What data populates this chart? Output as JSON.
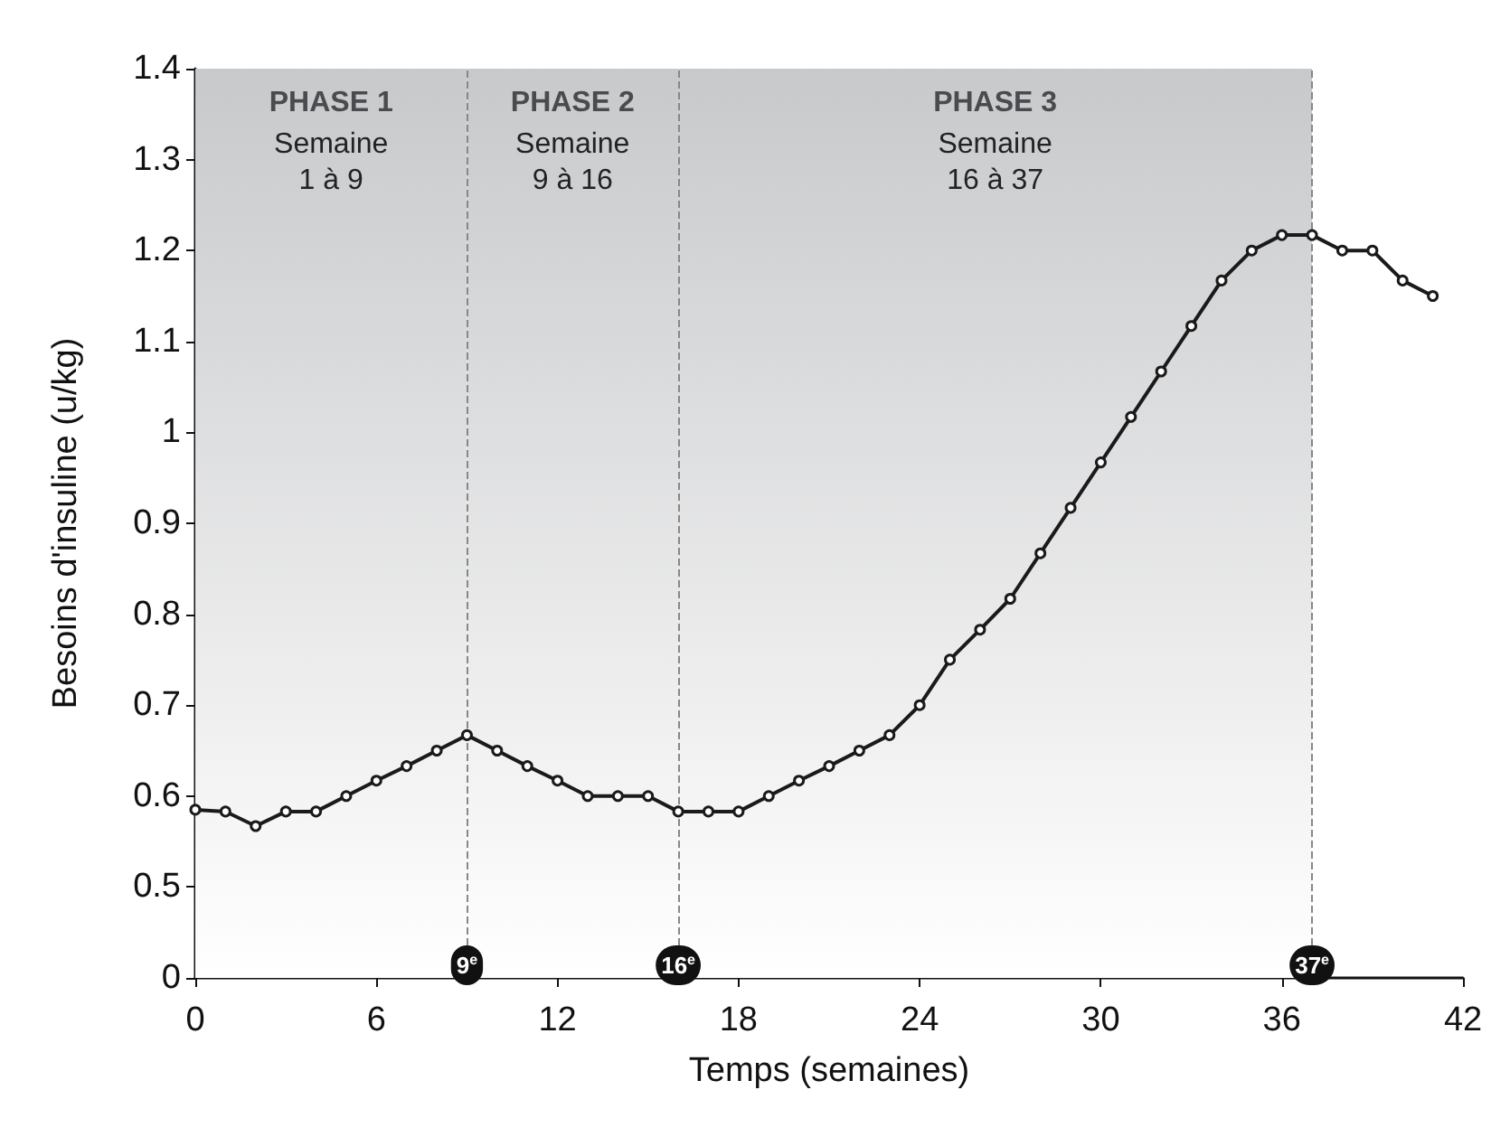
{
  "chart_data": {
    "type": "line",
    "xlabel": "Temps (semaines)",
    "ylabel": "Besoins d'insuline (u/kg)",
    "x": [
      0,
      1,
      2,
      3,
      4,
      5,
      6,
      7,
      8,
      9,
      10,
      11,
      12,
      13,
      14,
      15,
      16,
      17,
      18,
      19,
      20,
      21,
      22,
      23,
      24,
      25,
      26,
      27,
      28,
      29,
      30,
      31,
      32,
      33,
      34,
      35,
      36,
      37,
      38,
      39,
      40,
      41
    ],
    "series": [
      {
        "color": "#1a1a1a",
        "values": [
          0.585,
          0.583,
          0.567,
          0.583,
          0.583,
          0.6,
          0.617,
          0.633,
          0.65,
          0.667,
          0.65,
          0.633,
          0.617,
          0.6,
          0.6,
          0.6,
          0.583,
          0.583,
          0.583,
          0.6,
          0.617,
          0.633,
          0.65,
          0.667,
          0.7,
          0.75,
          0.783,
          0.817,
          0.867,
          0.917,
          0.967,
          1.017,
          1.067,
          1.117,
          1.167,
          1.2,
          1.217,
          1.217,
          1.2,
          1.2,
          1.167,
          1.15
        ]
      }
    ],
    "xlim": [
      0,
      42
    ],
    "xticks": [
      0,
      6,
      12,
      18,
      24,
      30,
      36,
      42
    ],
    "ylim": [
      0.4,
      1.4
    ],
    "yticks": [
      {
        "value": 0.4,
        "label": "0"
      },
      0.5,
      0.6,
      0.7,
      0.8,
      0.9,
      1.0,
      1.1,
      1.2,
      1.3,
      1.4
    ],
    "bands": [
      {
        "axis": "x",
        "from": 0,
        "to": 9,
        "label": "PHASE 1",
        "color": "#c8c9cb"
      },
      {
        "axis": "x",
        "from": 9,
        "to": 16,
        "label": "PHASE 2",
        "color": "#c8c9cb"
      },
      {
        "axis": "x",
        "from": 16,
        "to": 37,
        "label": "PHASE 3",
        "color": "#c8c9cb"
      }
    ],
    "ref_lines": [
      {
        "axis": "x",
        "value": 9,
        "label": "9$^{e}$",
        "line_style": "dashed",
        "color": "#888888"
      },
      {
        "axis": "x",
        "value": 16,
        "label": "16$^{e}$",
        "line_style": "dashed",
        "color": "#888888"
      },
      {
        "axis": "x",
        "value": 37,
        "label": "37$^{e}$",
        "line_style": "dashed",
        "color": "#888888"
      }
    ],
    "annotations": [
      "Semaine\n1 à 9",
      "Semaine\n9 à 16",
      "Semaine\n16 à 37"
    ],
    "marker": "circle",
    "line_style": "solid",
    "grid": false
  }
}
